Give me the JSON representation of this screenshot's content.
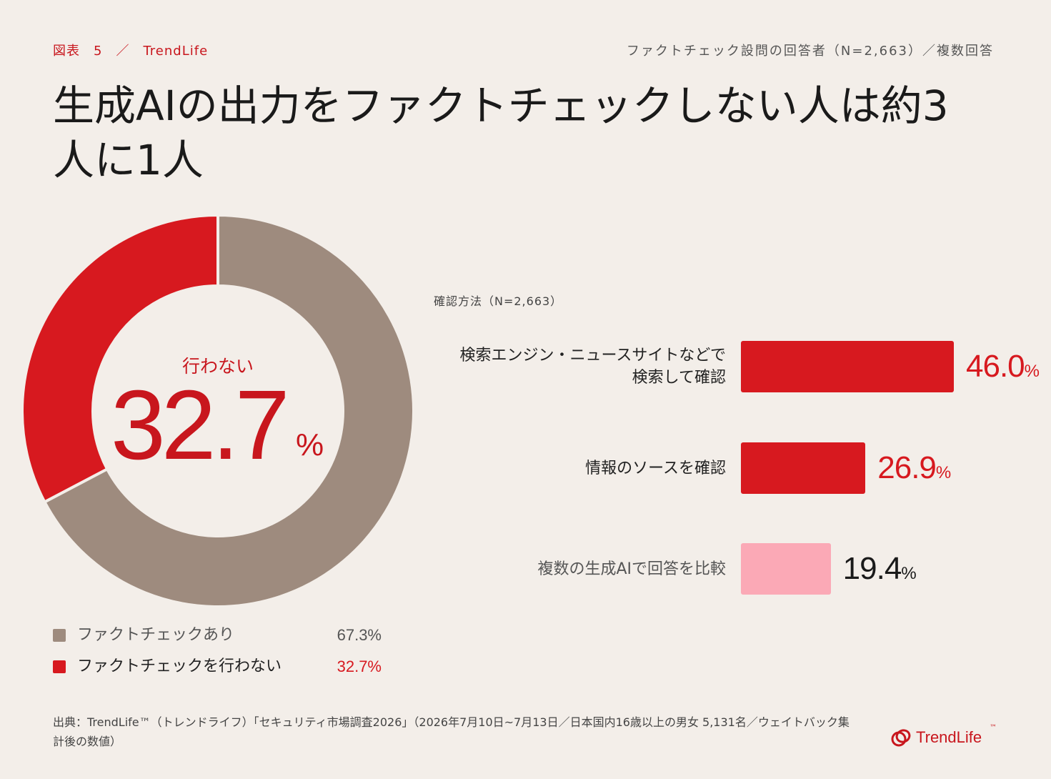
{
  "header": {
    "figure_label": "図表　5　／　TrendLife",
    "survey_note": "ファクトチェック設問の回答者（N=2,663）／複数回答"
  },
  "title": "生成AIの出力をファクトチェックしない人は約3人に1人",
  "colors": {
    "red": "#d7191f",
    "taupe": "#9e8b7e",
    "pink": "#fba9b6",
    "background": "#f3eee9"
  },
  "donut": {
    "center_label": "行わない",
    "center_value": "32.7",
    "center_unit": "%"
  },
  "legend": [
    {
      "label": "ファクトチェックあり",
      "value": "67.3%",
      "color": "#9e8b7e"
    },
    {
      "label": "ファクトチェックを行わない",
      "value": "32.7%",
      "color": "#d7191f"
    }
  ],
  "bars": {
    "subtitle": "確認方法（N=2,663）"
  },
  "chart_data": [
    {
      "type": "pie",
      "categories": [
        "ファクトチェックを行わない",
        "ファクトチェックあり"
      ],
      "values": [
        32.7,
        67.3
      ],
      "unit": "%"
    },
    {
      "type": "bar",
      "title": "確認方法（N=2,663）",
      "categories": [
        "検索エンジン・ニュースサイトなどで\n検索して確認",
        "情報のソースを確認",
        "複数の生成AIで回答を比較"
      ],
      "values": [
        46.0,
        26.9,
        19.4
      ],
      "value_labels": [
        "46.0",
        "26.9",
        "19.4"
      ],
      "unit": "%",
      "colors": [
        "#d7191f",
        "#d7191f",
        "#fba9b6"
      ],
      "value_colors": [
        "#d7191f",
        "#d7191f",
        "#1a1a1a"
      ]
    }
  ],
  "source": "出典：TrendLife™（トレンドライフ）「セキュリティ市場調査2026」（2026年7月10日~7月13日／日本国内16歳以上の男女 5,131名／ウェイトバック集計後の数値）",
  "brand": {
    "name": "TrendLife",
    "tm": "™"
  }
}
